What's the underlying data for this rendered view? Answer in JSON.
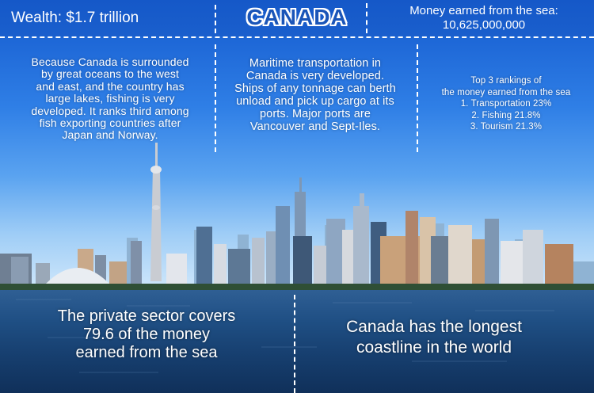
{
  "header": {
    "wealth": "Wealth: $1.7 trillion",
    "country": "CANADA",
    "money_earned_label": "Money earned from the sea:",
    "money_earned_value": "10,625,000,000"
  },
  "columns": {
    "fishing": [
      "Because Canada is surrounded",
      "by great oceans to the west",
      "and east, and the country has",
      "large lakes, fishing is very",
      "developed. It ranks third among",
      "fish exporting countries after",
      "Japan and Norway."
    ],
    "transport": [
      "Maritime transportation in",
      "Canada is very developed.",
      "Ships of any tonnage can berth",
      "unload and pick up cargo at its",
      "ports. Major ports are",
      "Vancouver and Sept-Iles."
    ],
    "rankings": [
      "Top 3 rankings of",
      "the money earned from the sea",
      "1. Transportation 23%",
      "2. Fishing 21.8%",
      "3. Tourism 21.3%"
    ]
  },
  "bottom": {
    "private_sector": [
      "The private sector covers",
      "79.6 of the money",
      "earned from the sea"
    ],
    "coastline": [
      "Canada has the longest",
      "coastline in the world"
    ]
  },
  "colors": {
    "header_blue": "#1558c8",
    "title_blue": "#1a55b8",
    "text": "#ffffff",
    "water": "#1f4f84"
  }
}
